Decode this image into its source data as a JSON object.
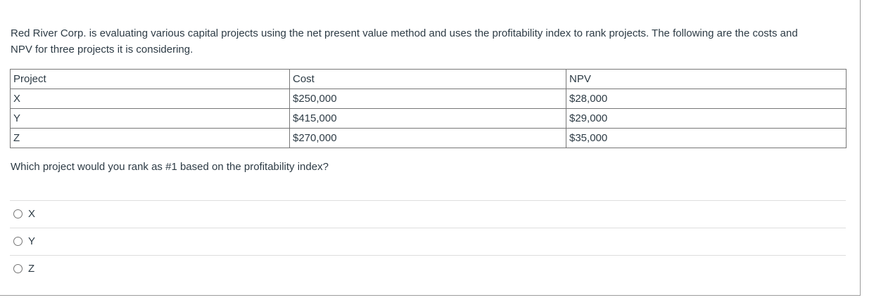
{
  "intro": {
    "line1": "Red River Corp. is evaluating various capital projects using the net present value method and uses the profitability index to rank projects. The following are the costs and",
    "line2": "NPV for three projects it is considering."
  },
  "table": {
    "headers": [
      "Project",
      "Cost",
      "NPV"
    ],
    "rows": [
      {
        "project": "X",
        "cost": "$250,000",
        "npv": "$28,000"
      },
      {
        "project": "Y",
        "cost": "$415,000",
        "npv": "$29,000"
      },
      {
        "project": "Z",
        "cost": "$270,000",
        "npv": "$35,000"
      }
    ]
  },
  "question": "Which project would you rank as #1 based on the profitability index?",
  "options": [
    {
      "label": "X",
      "selected": false
    },
    {
      "label": "Y",
      "selected": false
    },
    {
      "label": "Z",
      "selected": false
    }
  ],
  "colors": {
    "text": "#2d3b45",
    "table_border": "#777777",
    "card_border": "#9c9c9c",
    "option_divider": "#dedede"
  }
}
